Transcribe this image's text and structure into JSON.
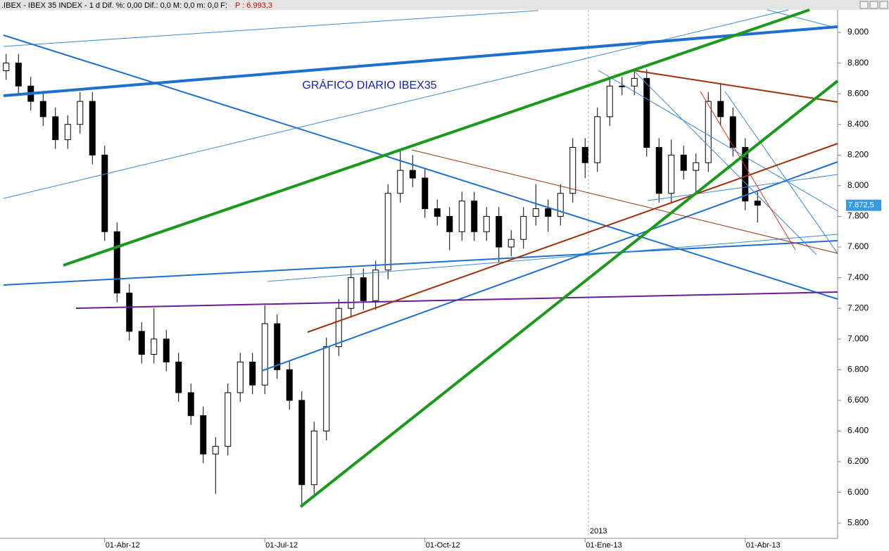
{
  "header": {
    "text": ".IBEX - IBEX 35 INDEX - 1 d Dif. %: 0,00 Dif.: 0,0 M: 0,0 m: 0,0 F:",
    "price": "P : 6.993,3"
  },
  "chart_data": {
    "type": "candlestick",
    "title": "GRÁFICO DIARIO IBEX35",
    "annotation": "2013",
    "categories": [
      null,
      null,
      null,
      null,
      null,
      null,
      null,
      null,
      "01-Abr-12",
      null,
      null,
      null,
      null,
      null,
      null,
      null,
      null,
      null,
      null,
      null,
      null,
      "01-Jul-12",
      null,
      null,
      null,
      null,
      null,
      null,
      null,
      null,
      null,
      null,
      null,
      null,
      "01-Oct-12",
      null,
      null,
      null,
      null,
      null,
      null,
      null,
      null,
      null,
      null,
      null,
      null,
      "01-Ene-13",
      null,
      null,
      null,
      null,
      null,
      null,
      null,
      null,
      null,
      null,
      null,
      null,
      "01-Abr-13",
      null,
      null,
      null,
      null,
      null,
      null,
      null
    ],
    "open": [
      8750,
      8800,
      8650,
      8550,
      8450,
      8300,
      8400,
      8550,
      8200,
      7700,
      7300,
      7050,
      6900,
      7000,
      6850,
      6650,
      6500,
      6250,
      6300,
      6650,
      6850,
      6700,
      7100,
      6800,
      6600,
      6050,
      6400,
      6950,
      7200,
      7400,
      7250,
      7450,
      7950,
      8100,
      8050,
      7850,
      7800,
      7700,
      7900,
      7700,
      7800,
      7600,
      7650,
      7800,
      7850,
      7800,
      7950,
      8250,
      8150,
      8450,
      8650,
      8650,
      8700,
      8250,
      7950,
      8200,
      8100,
      8150,
      8550,
      8450,
      8250,
      7900,
      null,
      null,
      null,
      null,
      null,
      null
    ],
    "high": [
      8860,
      8860,
      8710,
      8610,
      8510,
      8460,
      8610,
      8610,
      8260,
      7760,
      7360,
      7110,
      7200,
      7060,
      6910,
      6710,
      6560,
      6360,
      6710,
      6910,
      6910,
      7220,
      7160,
      6860,
      6660,
      6460,
      7010,
      7260,
      7460,
      7460,
      7510,
      8010,
      8240,
      8200,
      8110,
      7910,
      7860,
      7960,
      7960,
      7860,
      7860,
      7710,
      7860,
      8010,
      7910,
      8010,
      8310,
      8310,
      8510,
      8710,
      8710,
      8760,
      8760,
      8310,
      8300,
      8260,
      8210,
      8610,
      8670,
      8510,
      8310,
      7960,
      null,
      null,
      null,
      null,
      null,
      null
    ],
    "low": [
      8690,
      8590,
      8490,
      8390,
      8240,
      8240,
      8340,
      8140,
      7640,
      7240,
      6990,
      6840,
      6840,
      6790,
      6590,
      6440,
      6190,
      5990,
      6240,
      6590,
      6640,
      6640,
      6740,
      6540,
      5900,
      5990,
      6340,
      6890,
      7140,
      7190,
      7190,
      7390,
      7890,
      7990,
      7790,
      7740,
      7580,
      7640,
      7640,
      7640,
      7500,
      7540,
      7590,
      7740,
      7700,
      7740,
      7890,
      8050,
      8090,
      8390,
      8590,
      8590,
      8190,
      7890,
      7890,
      8040,
      7950,
      8090,
      8390,
      8190,
      7840,
      7760,
      null,
      null,
      null,
      null,
      null,
      null
    ],
    "close": [
      8800,
      8650,
      8550,
      8450,
      8300,
      8400,
      8550,
      8200,
      7700,
      7300,
      7050,
      6900,
      7000,
      6850,
      6650,
      6500,
      6250,
      6300,
      6650,
      6850,
      6700,
      7100,
      6800,
      6600,
      6050,
      6400,
      6950,
      7200,
      7400,
      7250,
      7450,
      7950,
      8100,
      8050,
      7850,
      7800,
      7700,
      7900,
      7700,
      7800,
      7600,
      7650,
      7800,
      7850,
      7800,
      7950,
      8250,
      8150,
      8450,
      8650,
      8650,
      8700,
      8250,
      7950,
      8200,
      8100,
      8150,
      8550,
      8450,
      8250,
      7900,
      7872.5,
      null,
      null,
      null,
      null,
      null,
      null
    ],
    "last_label": "7.872,5",
    "up_color": "#ffffff",
    "down_color": "#000000",
    "ylim": [
      5700,
      9147
    ],
    "yticks": [
      {
        "value": 5800,
        "label": "5.800"
      },
      {
        "value": 6000,
        "label": "6.000"
      },
      {
        "value": 6200,
        "label": "6.200"
      },
      {
        "value": 6400,
        "label": "6.400"
      },
      {
        "value": 6600,
        "label": "6.600"
      },
      {
        "value": 6800,
        "label": "6.800"
      },
      {
        "value": 7000,
        "label": "7.000"
      },
      {
        "value": 7200,
        "label": "7.200"
      },
      {
        "value": 7400,
        "label": "7.400"
      },
      {
        "value": 7600,
        "label": "7.600"
      },
      {
        "value": 7800,
        "label": "7.800"
      },
      {
        "value": 8000,
        "label": "8.000"
      },
      {
        "value": 8200,
        "label": "8.200"
      },
      {
        "value": 8400,
        "label": "8.400"
      },
      {
        "value": 8600,
        "label": "8.600"
      },
      {
        "value": 8800,
        "label": "8.800"
      },
      {
        "value": 9000,
        "label": "9.000"
      }
    ]
  }
}
